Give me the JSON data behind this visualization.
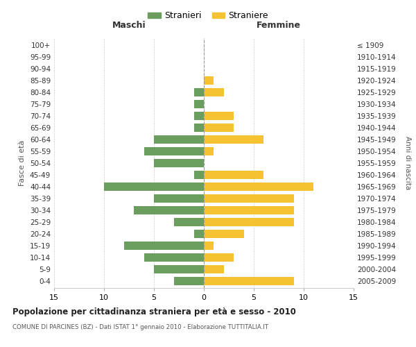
{
  "age_groups": [
    "0-4",
    "5-9",
    "10-14",
    "15-19",
    "20-24",
    "25-29",
    "30-34",
    "35-39",
    "40-44",
    "45-49",
    "50-54",
    "55-59",
    "60-64",
    "65-69",
    "70-74",
    "75-79",
    "80-84",
    "85-89",
    "90-94",
    "95-99",
    "100+"
  ],
  "birth_years": [
    "2005-2009",
    "2000-2004",
    "1995-1999",
    "1990-1994",
    "1985-1989",
    "1980-1984",
    "1975-1979",
    "1970-1974",
    "1965-1969",
    "1960-1964",
    "1955-1959",
    "1950-1954",
    "1945-1949",
    "1940-1944",
    "1935-1939",
    "1930-1934",
    "1925-1929",
    "1920-1924",
    "1915-1919",
    "1910-1914",
    "≤ 1909"
  ],
  "males": [
    3,
    5,
    6,
    8,
    1,
    3,
    7,
    5,
    10,
    1,
    5,
    6,
    5,
    1,
    1,
    1,
    1,
    0,
    0,
    0,
    0
  ],
  "females": [
    9,
    2,
    3,
    1,
    4,
    9,
    9,
    9,
    11,
    6,
    0,
    1,
    6,
    3,
    3,
    0,
    2,
    1,
    0,
    0,
    0
  ],
  "male_color": "#6b9e5e",
  "female_color": "#f5c231",
  "background_color": "#ffffff",
  "grid_color": "#cccccc",
  "title": "Popolazione per cittadinanza straniera per età e sesso - 2010",
  "subtitle": "COMUNE DI PARCINES (BZ) - Dati ISTAT 1° gennaio 2010 - Elaborazione TUTTITALIA.IT",
  "xlabel_left": "Maschi",
  "xlabel_right": "Femmine",
  "ylabel_left": "Fasce di età",
  "ylabel_right": "Anni di nascita",
  "legend_males": "Stranieri",
  "legend_females": "Straniere",
  "xlim": 15
}
